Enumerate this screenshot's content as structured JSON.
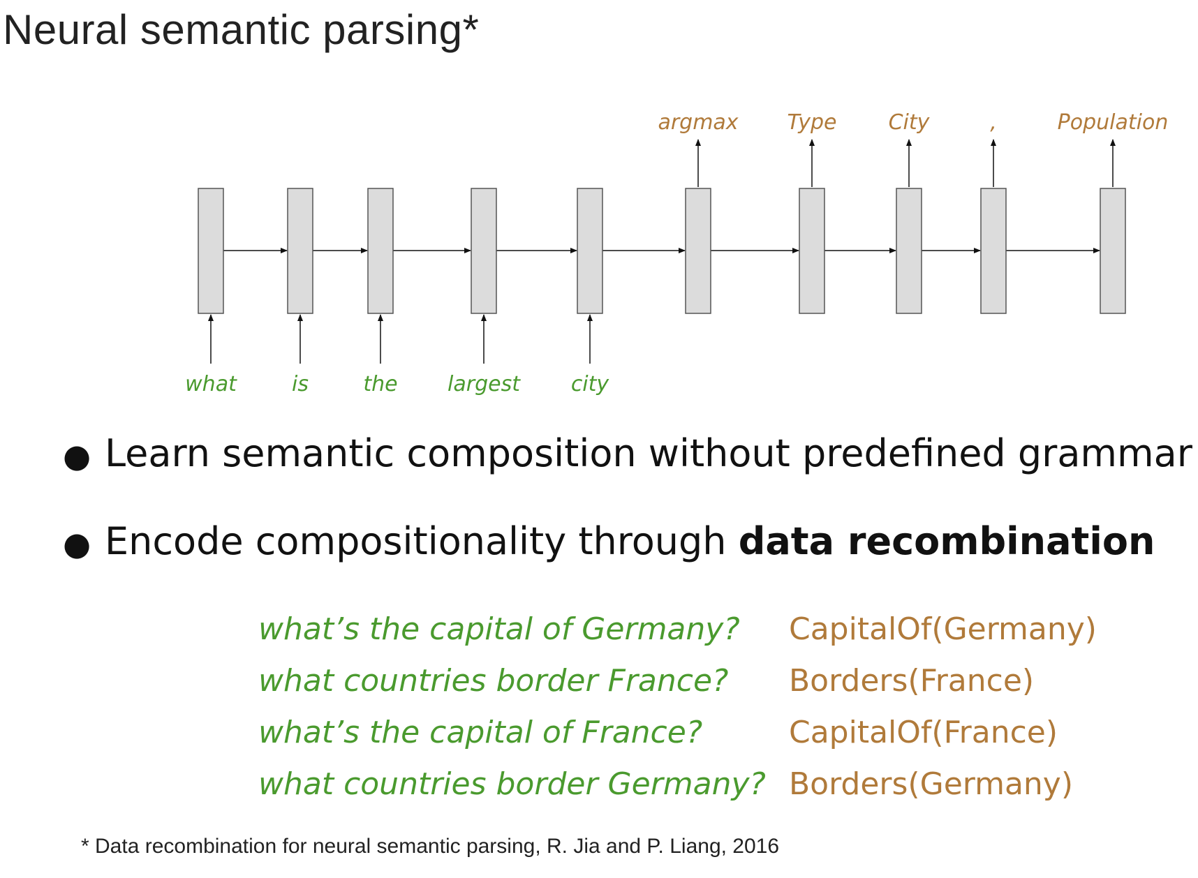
{
  "title": "Neural semantic parsing*",
  "colors": {
    "input": "#4a9a2e",
    "output": "#b07a3a",
    "box_fill": "#dcdcdc",
    "box_stroke": "#555555",
    "arrow": "#111111"
  },
  "diagram": {
    "inputs": [
      "what",
      "is",
      "the",
      "largest",
      "city"
    ],
    "outputs": [
      "argmax",
      "Type",
      "City",
      ",",
      "Population"
    ]
  },
  "bullets": [
    {
      "text": "Learn semantic composition without predefined grammar",
      "bold": ""
    },
    {
      "text": "Encode compositionality through ",
      "bold": "data recombination"
    }
  ],
  "examples": [
    {
      "question": "what’s the capital of Germany?",
      "form": "CapitalOf(Germany)"
    },
    {
      "question": "what countries border France?",
      "form": "Borders(France)"
    },
    {
      "question": "what’s the capital of France?",
      "form": "CapitalOf(France)"
    },
    {
      "question": "what countries border Germany?",
      "form": "Borders(Germany)"
    }
  ],
  "footnote": "* Data recombination for neural semantic parsing, R. Jia and P. Liang, 2016"
}
